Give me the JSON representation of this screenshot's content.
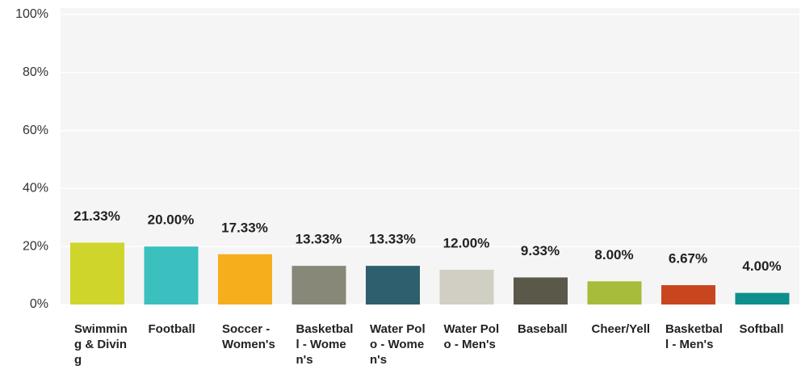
{
  "chart_data": {
    "type": "bar",
    "categories": [
      "Swimming & Diving",
      "Football",
      "Soccer - Women's",
      "Basketball - Women's",
      "Water Polo - Women's",
      "Water Polo - Men's",
      "Baseball",
      "Cheer/Yell",
      "Basketball - Men's",
      "Softball"
    ],
    "values": [
      21.33,
      20.0,
      17.33,
      13.33,
      13.33,
      12.0,
      9.33,
      8.0,
      6.67,
      4.0
    ],
    "value_labels": [
      "21.33%",
      "20.00%",
      "17.33%",
      "13.33%",
      "13.33%",
      "12.00%",
      "9.33%",
      "8.00%",
      "6.67%",
      "4.00%"
    ],
    "colors": [
      "#cfd52a",
      "#3bbfbf",
      "#f6ae1c",
      "#878878",
      "#2e5f6e",
      "#d1cfc3",
      "#5a5849",
      "#a6bc3a",
      "#c8461f",
      "#0f8f8c"
    ],
    "ylim": [
      0,
      100
    ],
    "yticks": [
      {
        "value": 0,
        "label": "0%"
      },
      {
        "value": 20,
        "label": "20%"
      },
      {
        "value": 40,
        "label": "40%"
      },
      {
        "value": 60,
        "label": "60%"
      },
      {
        "value": 80,
        "label": "80%"
      },
      {
        "value": 100,
        "label": "100%"
      }
    ],
    "grid": true
  }
}
